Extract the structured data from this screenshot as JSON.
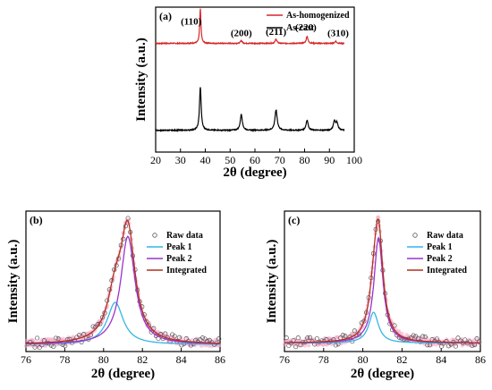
{
  "chart_data": [
    {
      "type": "line",
      "panel_label": "(a)",
      "xlabel": "2θ (degree)",
      "ylabel": "Intensity (a.u.)",
      "xlim": [
        20,
        100
      ],
      "xticks": [
        20,
        30,
        40,
        50,
        60,
        70,
        80,
        90,
        100
      ],
      "legend_position": "top-right",
      "series": [
        {
          "name": "As-homogenized",
          "color": "#d62728",
          "baseline": 0.75,
          "peaks": [
            {
              "x": 38.0,
              "height": 0.24,
              "width": 0.3
            },
            {
              "x": 54.5,
              "height": 0.02,
              "width": 0.4
            },
            {
              "x": 68.5,
              "height": 0.03,
              "width": 0.4
            },
            {
              "x": 81.0,
              "height": 0.05,
              "width": 0.4
            },
            {
              "x": 92.5,
              "height": 0.015,
              "width": 0.4
            }
          ]
        },
        {
          "name": "As-cast",
          "color": "#000000",
          "baseline": 0.15,
          "peaks": [
            {
              "x": 38.0,
              "height": 0.3,
              "width": 0.4
            },
            {
              "x": 54.5,
              "height": 0.11,
              "width": 0.5
            },
            {
              "x": 68.5,
              "height": 0.14,
              "width": 0.55
            },
            {
              "x": 81.0,
              "height": 0.07,
              "width": 0.5
            },
            {
              "x": 92.0,
              "height": 0.06,
              "width": 0.5
            },
            {
              "x": 93.0,
              "height": 0.05,
              "width": 0.5
            }
          ]
        }
      ],
      "annotations": [
        {
          "text": "(110)",
          "x": 34.3,
          "y": 0.88
        },
        {
          "text": "(200)",
          "x": 54.5,
          "y": 0.8
        },
        {
          "text": "(211)",
          "x": 68.5,
          "y": 0.81
        },
        {
          "text": "(220)",
          "x": 80.5,
          "y": 0.84
        },
        {
          "text": "(310)",
          "x": 93.5,
          "y": 0.8
        }
      ]
    },
    {
      "type": "scatter",
      "panel_label": "(b)",
      "xlabel": "2θ (degree)",
      "ylabel": "Intensity (a.u.)",
      "xlim": [
        76,
        86
      ],
      "xticks": [
        76,
        78,
        80,
        82,
        84,
        86
      ],
      "legend_position": "top-right",
      "baseline": 0.05,
      "peak1": {
        "center": 80.6,
        "height": 0.3,
        "width": 0.5
      },
      "peak2": {
        "center": 81.25,
        "height": 0.77,
        "width": 0.45
      },
      "series": [
        {
          "name": "Raw data",
          "color": "#666666",
          "marker": "circle"
        },
        {
          "name": "Peak 1",
          "color": "#33b5e5"
        },
        {
          "name": "Peak 2",
          "color": "#9933cc"
        },
        {
          "name": "Integrated",
          "color": "#b03020"
        }
      ]
    },
    {
      "type": "scatter",
      "panel_label": "(c)",
      "xlabel": "2θ (degree)",
      "ylabel": "Intensity (a.u.)",
      "xlim": [
        76,
        86
      ],
      "xticks": [
        76,
        78,
        80,
        82,
        84,
        86
      ],
      "legend_position": "top-right",
      "baseline": 0.06,
      "peak1": {
        "center": 80.55,
        "height": 0.22,
        "width": 0.3
      },
      "peak2": {
        "center": 80.8,
        "height": 0.75,
        "width": 0.28
      },
      "series": [
        {
          "name": "Raw data",
          "color": "#666666",
          "marker": "circle"
        },
        {
          "name": "Peak 1",
          "color": "#33b5e5"
        },
        {
          "name": "Peak 2",
          "color": "#9933cc"
        },
        {
          "name": "Integrated",
          "color": "#b03020"
        }
      ]
    }
  ]
}
